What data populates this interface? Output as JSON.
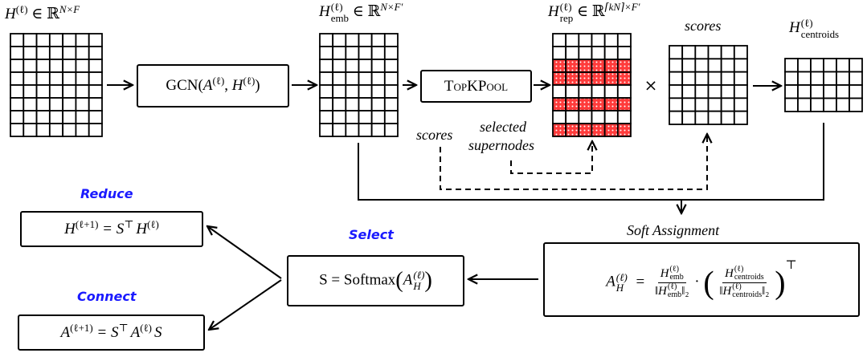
{
  "colors": {
    "step_title": "#1a1aff",
    "highlight": "#ff3b3b",
    "line": "#000000"
  },
  "matrices": {
    "input": {
      "base": "H",
      "sup": "(ℓ)",
      "in": "∈ ℝ",
      "dim": "N×F",
      "rows": 8,
      "cols": 7
    },
    "embedding": {
      "base": "H",
      "sup": "(ℓ)",
      "sub": "emb",
      "in": "∈ ℝ",
      "dim": "N×F′",
      "rows": 8,
      "cols": 6
    },
    "representatives": {
      "base": "H",
      "sup": "(ℓ)",
      "sub": "rep",
      "in": "∈ ℝ",
      "dim": "⌈kN⌉×F′",
      "rows": 8,
      "cols": 6,
      "highlighted_rows": [
        3,
        4,
        6,
        8
      ]
    },
    "scores": {
      "label": "scores",
      "rows": 6,
      "cols": 6
    },
    "centroids": {
      "base": "H",
      "sup": "(ℓ)",
      "sub": "centroids",
      "rows": 4,
      "cols": 6
    }
  },
  "gcn": {
    "name": "GCN(",
    "a": "A",
    "comma": ", ",
    "h": "H",
    "sup": "(ℓ)",
    "close": ")"
  },
  "topk": {
    "label": "TopKPool"
  },
  "times": "×",
  "annotations": {
    "scores": "scores",
    "selected": "selected",
    "supernodes": "supernodes"
  },
  "soft_assignment": {
    "title": "Soft Assignment",
    "lhs": "A",
    "lhs_sup": "(ℓ)",
    "lhs_sub": "H",
    "eq": "=",
    "num1": "H",
    "num1_sub": "emb",
    "den1": "‖H",
    "den1_sub": "emb",
    "norm": "‖₂",
    "dot": "·",
    "num2": "H",
    "num2_sub": "centroids",
    "den2": "‖H",
    "den2_sub": "centroids",
    "sup": "(ℓ)",
    "open": "(",
    "close": ")",
    "transpose": "⊤"
  },
  "select": {
    "title": "Select",
    "lhs": "S = Softmax",
    "open": "(",
    "a": "A",
    "a_sup": "(ℓ)",
    "a_sub": "H",
    "close": ")"
  },
  "reduce": {
    "title": "Reduce",
    "lhs": "H",
    "lhs_sup": "(ℓ+1)",
    "eq": " = S",
    "t": "⊤",
    "rhs": "H",
    "rhs_sup": "(ℓ)"
  },
  "connect": {
    "title": "Connect",
    "lhs": "A",
    "lhs_sup": "(ℓ+1)",
    "eq": " = S",
    "t": "⊤",
    "rhs": "A",
    "rhs_sup": "(ℓ)",
    "tail": "S"
  }
}
